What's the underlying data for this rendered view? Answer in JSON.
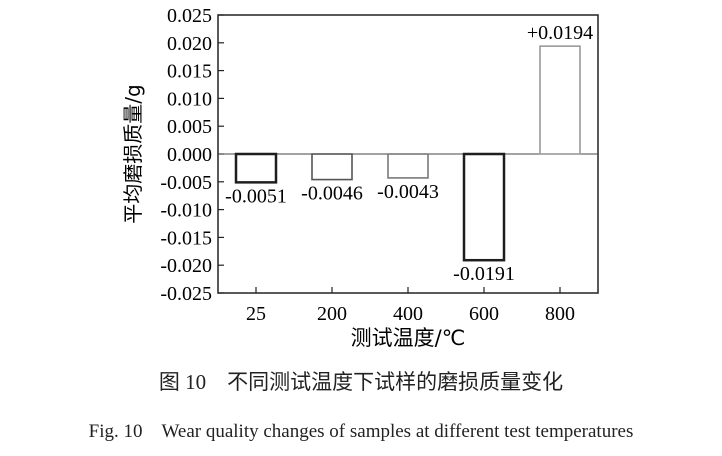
{
  "chart_data": {
    "type": "bar",
    "categories": [
      "25",
      "200",
      "400",
      "600",
      "800"
    ],
    "values": [
      -0.0051,
      -0.0046,
      -0.0043,
      -0.0191,
      0.0194
    ],
    "data_labels": [
      "-0.0051",
      "-0.0046",
      "-0.0043",
      "-0.0191",
      "+0.0194"
    ],
    "bar_colors": [
      "#1e1e1e",
      "#555555",
      "#7a7a7a",
      "#1e1e1e",
      "#9a9a9a"
    ],
    "xlabel": "测试温度/℃",
    "ylabel": "平均磨损质量/g",
    "ylim": [
      -0.025,
      0.025
    ],
    "yticks": [
      "0.025",
      "0.020",
      "0.015",
      "0.010",
      "0.005",
      "0.000",
      "-0.005",
      "-0.010",
      "-0.015",
      "-0.020",
      "-0.025"
    ],
    "grid": false
  },
  "caption": {
    "chinese": "图 10　不同测试温度下试样的磨损质量变化",
    "english": "Fig. 10　Wear quality changes of samples at different test temperatures"
  }
}
